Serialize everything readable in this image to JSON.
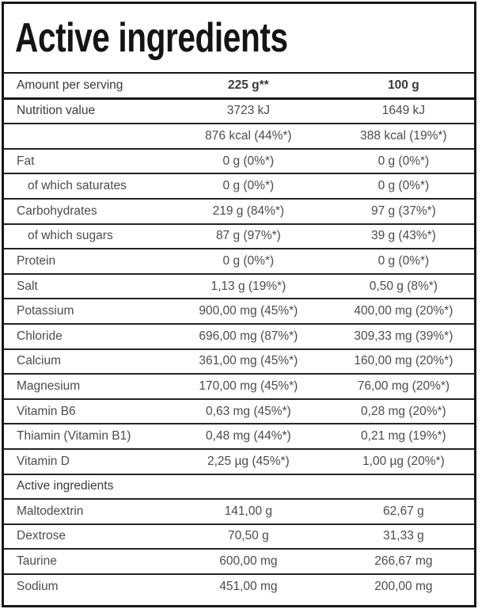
{
  "title": "Active ingredients",
  "colors": {
    "border": "#161616",
    "row_line": "#242424",
    "text": "#4c4c4c",
    "bold_text": "#3a3a3a",
    "background": "#ffffff"
  },
  "table": {
    "header": {
      "label": "Amount per serving",
      "per_serving": "225 g**",
      "per_100g": "100 g"
    },
    "rows": [
      {
        "label": "Nutrition value",
        "bold": true,
        "v1": "3723 kJ",
        "v2": "1649 kJ"
      },
      {
        "label": "",
        "v1": "876 kcal (44%*)",
        "v2": "388 kcal (19%*)"
      },
      {
        "label": "Fat",
        "v1": "0 g (0%*)",
        "v2": "0 g (0%*)"
      },
      {
        "label": "of which saturates",
        "indent": true,
        "v1": "0 g (0%*)",
        "v2": "0 g (0%*)"
      },
      {
        "label": "Carbohydrates",
        "v1": "219 g (84%*)",
        "v2": "97 g (37%*)"
      },
      {
        "label": "of which sugars",
        "indent": true,
        "v1": "87 g (97%*)",
        "v2": "39 g (43%*)"
      },
      {
        "label": "Protein",
        "v1": "0 g (0%*)",
        "v2": "0 g (0%*)"
      },
      {
        "label": "Salt",
        "v1": "1,13 g (19%*)",
        "v2": "0,50 g (8%*)"
      },
      {
        "label": "Potassium",
        "v1": "900,00 mg (45%*)",
        "v2": "400,00 mg (20%*)"
      },
      {
        "label": "Chloride",
        "v1": "696,00 mg (87%*)",
        "v2": "309,33 mg (39%*)"
      },
      {
        "label": "Calcium",
        "v1": "361,00 mg (45%*)",
        "v2": "160,00 mg (20%*)"
      },
      {
        "label": "Magnesium",
        "v1": "170,00 mg (45%*)",
        "v2": "76,00 mg (20%*)"
      },
      {
        "label": "Vitamin B6",
        "v1": "0,63 mg (45%*)",
        "v2": "0,28 mg (20%*)"
      },
      {
        "label": "Thiamin (Vitamin B1)",
        "v1": "0,48 mg (44%*)",
        "v2": "0,21 mg (19%*)"
      },
      {
        "label": "Vitamin D",
        "v1": "2,25 µg (45%*)",
        "v2": "1,00 µg (20%*)"
      },
      {
        "label": "Active ingredients",
        "section": true
      },
      {
        "label": "Maltodextrin",
        "v1": "141,00 g",
        "v2": "62,67 g"
      },
      {
        "label": "Dextrose",
        "v1": "70,50 g",
        "v2": "31,33 g"
      },
      {
        "label": "Taurine",
        "v1": "600,00 mg",
        "v2": "266,67 mg"
      },
      {
        "label": "Sodium",
        "v1": "451,00 mg",
        "v2": "200,00 mg"
      }
    ]
  }
}
